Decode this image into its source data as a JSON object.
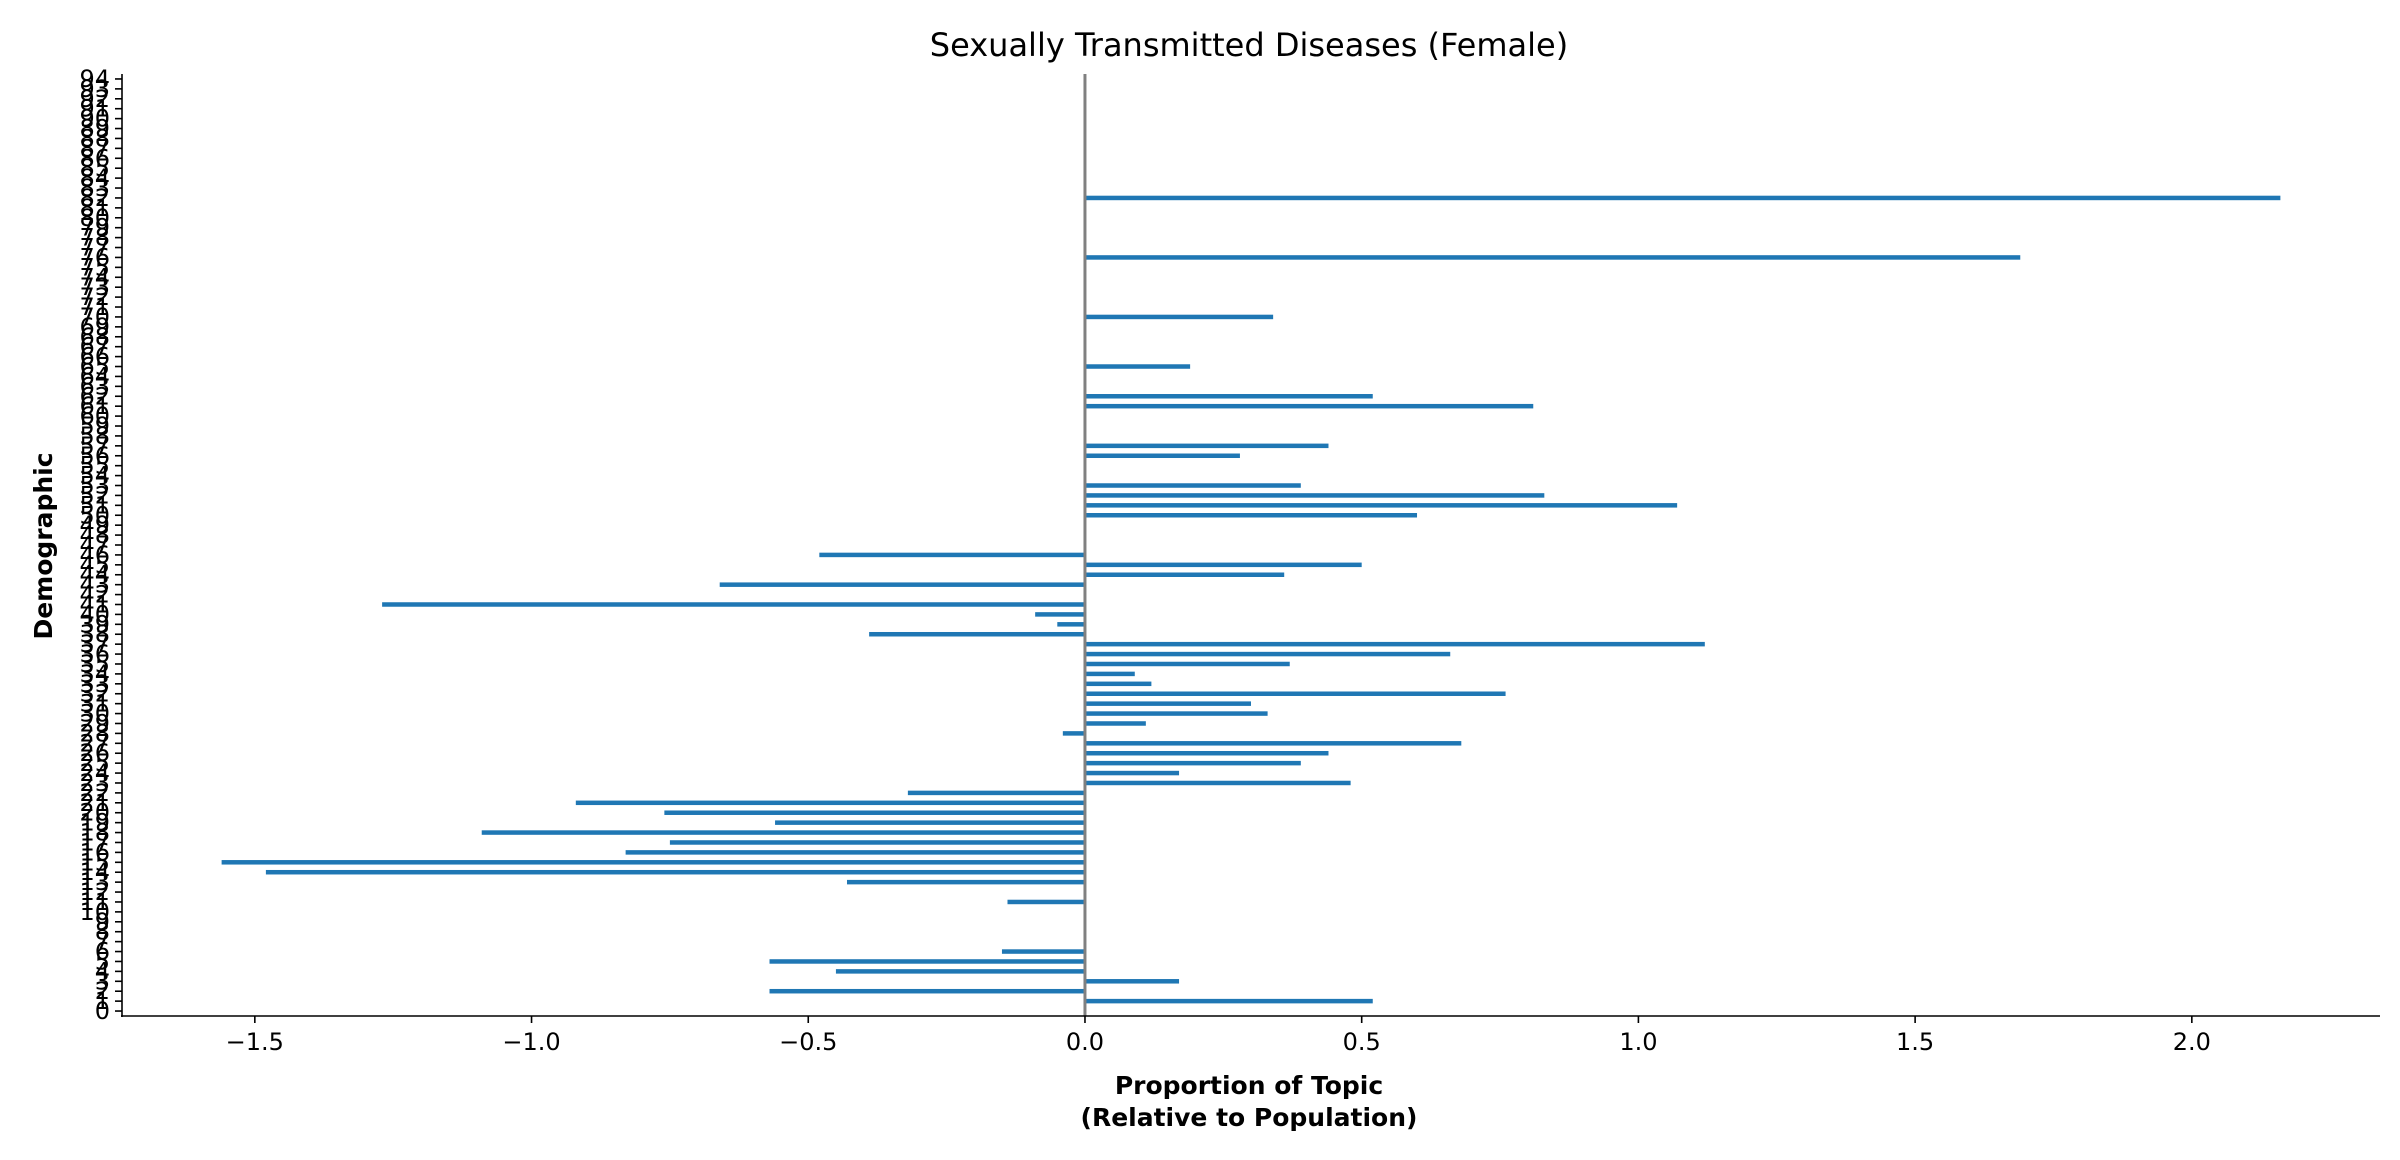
{
  "chart_data": {
    "type": "bar",
    "orientation": "horizontal",
    "title": "Sexually Transmitted Diseases (Female)",
    "xlabel_lines": [
      "Proportion of Topic",
      "(Relative to Population)"
    ],
    "ylabel": "Demographic",
    "xlim": [
      -1.74,
      2.34
    ],
    "ylim": [
      -0.5,
      94.5
    ],
    "xticks": [
      -1.5,
      -1.0,
      -0.5,
      0.0,
      0.5,
      1.0,
      1.5,
      2.0
    ],
    "xtick_labels": [
      "−1.5",
      "−1.0",
      "−0.5",
      "0.0",
      "0.5",
      "1.0",
      "1.5",
      "2.0"
    ],
    "categories": [
      "0",
      "1",
      "2",
      "3",
      "4",
      "5",
      "6",
      "7",
      "8",
      "9",
      "10",
      "11",
      "12",
      "13",
      "14",
      "15",
      "16",
      "17",
      "18",
      "19",
      "20",
      "21",
      "22",
      "23",
      "24",
      "25",
      "26",
      "27",
      "28",
      "29",
      "30",
      "31",
      "32",
      "33",
      "34",
      "35",
      "36",
      "37",
      "38",
      "39",
      "40",
      "41",
      "42",
      "43",
      "44",
      "45",
      "46",
      "47",
      "48",
      "49",
      "50",
      "51",
      "52",
      "53",
      "54",
      "55",
      "56",
      "57",
      "58",
      "59",
      "60",
      "61",
      "62",
      "63",
      "64",
      "65",
      "66",
      "67",
      "68",
      "69",
      "70",
      "71",
      "72",
      "73",
      "74",
      "75",
      "76",
      "77",
      "78",
      "79",
      "80",
      "81",
      "82",
      "83",
      "84",
      "85",
      "86",
      "87",
      "88",
      "89",
      "90",
      "91",
      "92",
      "93",
      "94"
    ],
    "values": [
      0,
      0.52,
      -0.57,
      0.17,
      -0.45,
      -0.57,
      -0.15,
      0,
      0,
      0,
      0,
      -0.14,
      0,
      -0.43,
      -1.48,
      -1.56,
      -0.83,
      -0.75,
      -1.09,
      -0.56,
      -0.76,
      -0.92,
      -0.32,
      0.48,
      0.17,
      0.39,
      0.44,
      0.68,
      -0.04,
      0.11,
      0.33,
      0.3,
      0.76,
      0.12,
      0.09,
      0.37,
      0.66,
      1.12,
      -0.39,
      -0.05,
      -0.09,
      -1.27,
      0,
      -0.66,
      0.36,
      0.5,
      -0.48,
      0,
      0,
      0,
      0.6,
      1.07,
      0.83,
      0.39,
      0,
      0,
      0.28,
      0.44,
      0,
      0,
      0,
      0.81,
      0.52,
      0,
      0,
      0.19,
      0,
      0,
      0,
      0,
      0.34,
      0,
      0,
      0,
      0,
      0,
      1.69,
      0,
      0,
      0,
      0,
      0,
      2.16,
      0,
      0,
      0,
      0,
      0,
      0,
      0,
      0,
      0,
      0,
      0,
      0
    ],
    "bar_color": "#1f77b4",
    "zero_line_color": "#808080",
    "grid": false,
    "legend": "none"
  }
}
